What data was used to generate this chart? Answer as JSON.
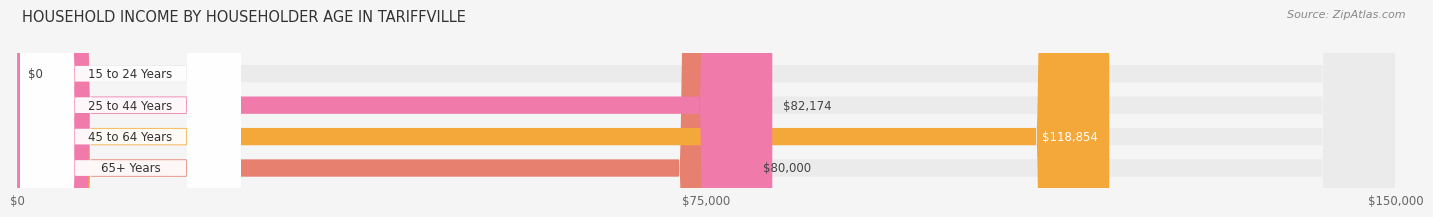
{
  "title": "HOUSEHOLD INCOME BY HOUSEHOLDER AGE IN TARIFFVILLE",
  "source": "Source: ZipAtlas.com",
  "categories": [
    "15 to 24 Years",
    "25 to 44 Years",
    "45 to 64 Years",
    "65+ Years"
  ],
  "values": [
    0,
    82174,
    118854,
    80000
  ],
  "bar_colors": [
    "#b8b8e8",
    "#f07aaa",
    "#f5a83a",
    "#e88070"
  ],
  "bar_bg_color": "#ebebeb",
  "value_labels": [
    "$0",
    "$82,174",
    "$118,854",
    "$80,000"
  ],
  "value_inside": [
    false,
    false,
    true,
    false
  ],
  "xlim": [
    0,
    150000
  ],
  "xticks": [
    0,
    75000,
    150000
  ],
  "xtick_labels": [
    "$0",
    "$75,000",
    "$150,000"
  ],
  "background_color": "#f5f5f5",
  "title_fontsize": 10.5,
  "source_fontsize": 8,
  "label_fontsize": 8.5,
  "bar_height": 0.55,
  "bar_bg_alpha": 1.0
}
